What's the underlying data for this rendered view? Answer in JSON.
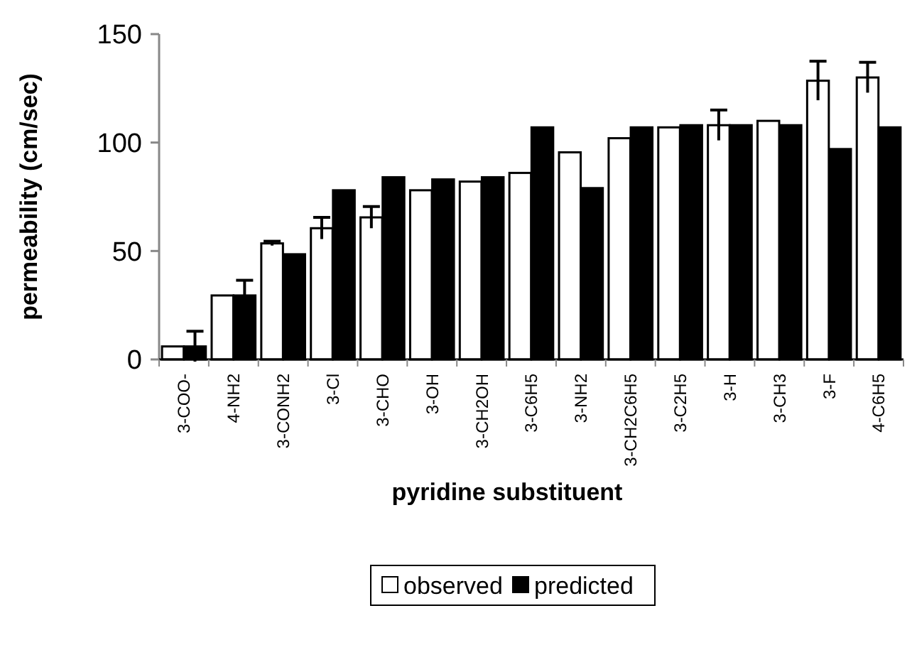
{
  "chart_data": {
    "type": "bar",
    "xlabel": "pyridine substituent",
    "ylabel": "permeability (cm/sec)",
    "categories": [
      "3-COO-",
      "4-NH2",
      "3-CONH2",
      "3-Cl",
      "3-CHO",
      "3-OH",
      "3-CH2OH",
      "3-C6H5",
      "3-NH2",
      "3-CH2C6H5",
      "3-C2H5",
      "3-H",
      "3-CH3",
      "3-F",
      "4-C6H5"
    ],
    "series": [
      {
        "name": "observed",
        "color": "#ffffff",
        "values": [
          6,
          29.5,
          53.5,
          60.5,
          65.5,
          78,
          82,
          86,
          95.5,
          102,
          107,
          108,
          110,
          128.5,
          130
        ],
        "errors": [
          null,
          null,
          1,
          5,
          5,
          null,
          null,
          null,
          null,
          null,
          null,
          7,
          null,
          9,
          7
        ]
      },
      {
        "name": "predicted",
        "color": "#000000",
        "values": [
          6,
          29.5,
          48.5,
          78,
          84,
          83,
          84,
          107,
          79,
          107,
          108,
          108,
          108,
          97,
          107
        ],
        "errors": [
          7,
          7,
          null,
          null,
          null,
          null,
          null,
          null,
          null,
          null,
          null,
          null,
          null,
          null,
          null
        ]
      }
    ],
    "ylim": [
      0,
      150
    ],
    "yticks": [
      0,
      50,
      100,
      150
    ],
    "grid": false,
    "legend": "bottom"
  }
}
